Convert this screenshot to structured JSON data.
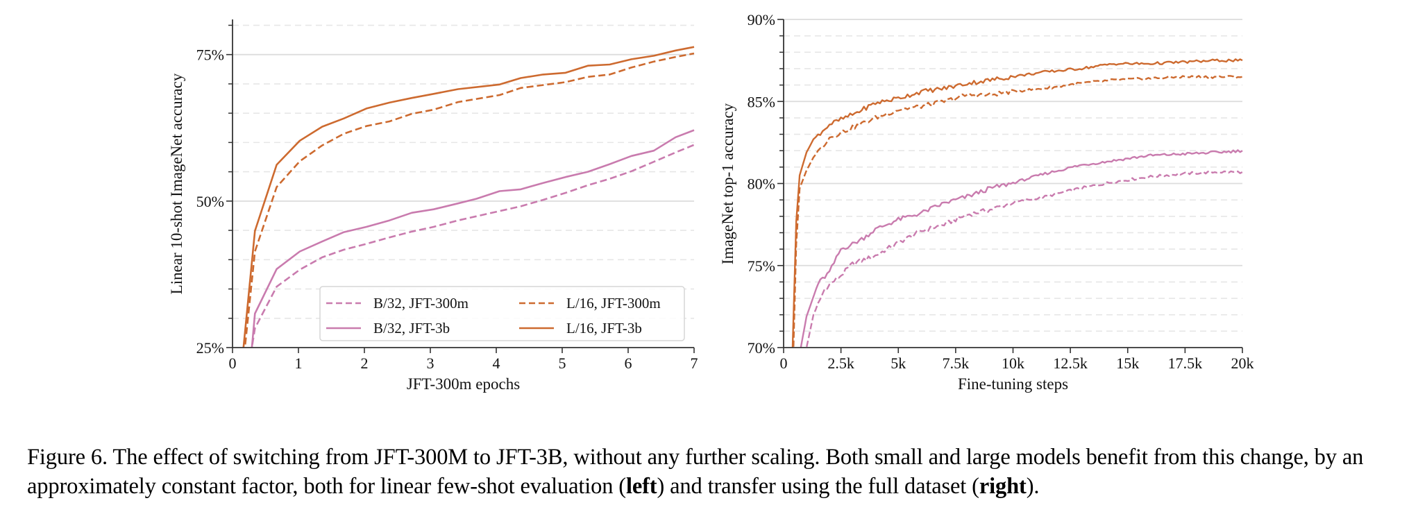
{
  "chart_data": [
    {
      "type": "line",
      "panel": "left",
      "title": "",
      "xlabel": "JFT-300m epochs",
      "ylabel": "Linear 10-shot ImageNet accuracy",
      "xlim": [
        0,
        7
      ],
      "ylim": [
        25,
        81
      ],
      "xticks": [
        0,
        1,
        2,
        3,
        4,
        5,
        6,
        7
      ],
      "xtick_labels": [
        "0",
        "1",
        "2",
        "3",
        "4",
        "5",
        "6",
        "7"
      ],
      "yticks": [
        25,
        50,
        75
      ],
      "ytick_labels": [
        "25%",
        "50%",
        "75%"
      ],
      "yminor": [
        30,
        35,
        40,
        45,
        55,
        60,
        65,
        70,
        80
      ],
      "grid": true,
      "legend": {
        "placement": "lower-right",
        "columns": 2
      },
      "series": [
        {
          "name": "B/32, JFT-300m",
          "color": "#c97bae",
          "dash": "dashed",
          "x": [
            0.25,
            0.34,
            0.67,
            1.02,
            1.36,
            1.69,
            2.03,
            2.38,
            2.72,
            3.05,
            3.42,
            4.05,
            4.37,
            4.71,
            5.05,
            5.39,
            5.72,
            6.05,
            6.39,
            6.72,
            7.0
          ],
          "y": [
            22.0,
            28.3,
            35.4,
            38.3,
            40.4,
            41.7,
            42.7,
            43.8,
            44.8,
            45.6,
            46.7,
            48.3,
            49.1,
            50.2,
            51.4,
            52.7,
            53.8,
            55.1,
            56.7,
            58.3,
            59.6
          ]
        },
        {
          "name": "B/32, JFT-3b",
          "color": "#c97bae",
          "dash": "solid",
          "x": [
            0.27,
            0.34,
            0.67,
            1.02,
            1.36,
            1.69,
            2.03,
            2.38,
            2.72,
            3.05,
            3.42,
            3.7,
            4.05,
            4.37,
            4.71,
            5.05,
            5.39,
            5.72,
            6.05,
            6.39,
            6.72,
            7.0
          ],
          "y": [
            22.0,
            30.8,
            38.4,
            41.4,
            43.1,
            44.7,
            45.6,
            46.7,
            48.0,
            48.6,
            49.6,
            50.4,
            51.7,
            52.0,
            53.1,
            54.1,
            55.0,
            56.3,
            57.7,
            58.6,
            60.9,
            62.1
          ]
        },
        {
          "name": "L/16, JFT-300m",
          "color": "#cd6a2f",
          "dash": "dashed",
          "x": [
            0.16,
            0.34,
            0.67,
            1.02,
            1.36,
            1.69,
            2.03,
            2.38,
            2.72,
            3.05,
            3.42,
            4.05,
            4.37,
            5.05,
            5.39,
            5.72,
            6.05,
            6.39,
            6.72,
            7.0
          ],
          "y": [
            22.0,
            41.4,
            52.4,
            56.8,
            59.5,
            61.5,
            62.8,
            63.6,
            64.9,
            65.6,
            66.9,
            68.1,
            69.3,
            70.3,
            71.2,
            71.6,
            72.8,
            73.8,
            74.6,
            75.2
          ]
        },
        {
          "name": "L/16, JFT-3b",
          "color": "#cd6a2f",
          "dash": "solid",
          "x": [
            0.14,
            0.34,
            0.67,
            1.02,
            1.36,
            1.69,
            2.03,
            2.38,
            2.72,
            3.05,
            3.42,
            4.05,
            4.37,
            4.71,
            5.05,
            5.39,
            5.72,
            6.05,
            6.39,
            6.72,
            7.0
          ],
          "y": [
            22.0,
            44.9,
            56.2,
            60.3,
            62.7,
            64.1,
            65.8,
            66.8,
            67.6,
            68.3,
            69.1,
            69.9,
            71.0,
            71.6,
            71.9,
            73.1,
            73.3,
            74.2,
            74.8,
            75.7,
            76.3
          ]
        }
      ]
    },
    {
      "type": "line",
      "panel": "right",
      "title": "",
      "xlabel": "Fine-tuning steps",
      "ylabel": "ImageNet top-1 accuracy",
      "xlim": [
        0,
        20000
      ],
      "ylim": [
        70,
        90
      ],
      "xticks": [
        0,
        2500,
        5000,
        7500,
        10000,
        12500,
        15000,
        17500,
        20000
      ],
      "xtick_labels": [
        "0",
        "2.5k",
        "5k",
        "7.5k",
        "10k",
        "12.5k",
        "15k",
        "17.5k",
        "20k"
      ],
      "yticks": [
        70,
        75,
        80,
        85,
        90
      ],
      "ytick_labels": [
        "70%",
        "75%",
        "80%",
        "85%",
        "90%"
      ],
      "yminor": [
        71,
        72,
        73,
        74,
        76,
        77,
        78,
        79,
        81,
        82,
        83,
        84,
        86,
        87,
        88,
        89
      ],
      "grid": true,
      "noisy": true,
      "series": [
        {
          "name": "B/32, JFT-300m",
          "color": "#c97bae",
          "dash": "dashed",
          "x": [
            950,
            1000,
            1300,
            1800,
            2500,
            3000,
            4000,
            5000,
            6000,
            7000,
            8000,
            9000,
            9900,
            11400,
            12900,
            14400,
            15900,
            17400,
            18900,
            20000
          ],
          "y": [
            69.5,
            70.0,
            72.0,
            73.6,
            74.4,
            75.1,
            75.6,
            76.4,
            77.1,
            77.5,
            78.1,
            78.4,
            78.8,
            79.2,
            79.7,
            80.1,
            80.4,
            80.6,
            80.7,
            80.7
          ]
        },
        {
          "name": "B/32, JFT-3b",
          "color": "#c97bae",
          "dash": "solid",
          "x": [
            700,
            750,
            1000,
            1250,
            1500,
            2000,
            2500,
            3000,
            3500,
            4000,
            5000,
            6000,
            7000,
            8000,
            9000,
            9900,
            11400,
            12900,
            14400,
            15900,
            17400,
            18900,
            20000
          ],
          "y": [
            69.5,
            70.0,
            71.9,
            72.9,
            73.9,
            74.6,
            76.0,
            76.3,
            76.7,
            77.2,
            77.8,
            78.2,
            78.8,
            79.2,
            79.7,
            80.0,
            80.6,
            81.1,
            81.4,
            81.7,
            81.8,
            81.9,
            82.0
          ]
        },
        {
          "name": "L/16, JFT-300m",
          "color": "#cd6a2f",
          "dash": "dashed",
          "x": [
            420,
            550,
            700,
            1000,
            1300,
            2000,
            3000,
            4000,
            5000,
            6000,
            7000,
            8000,
            9000,
            9900,
            11400,
            12900,
            14400,
            15900,
            17400,
            18900,
            20000
          ],
          "y": [
            69.5,
            76.3,
            79.7,
            80.8,
            81.6,
            82.8,
            83.4,
            84.0,
            84.5,
            84.7,
            85.0,
            85.4,
            85.4,
            85.6,
            85.8,
            86.1,
            86.3,
            86.4,
            86.5,
            86.5,
            86.5
          ]
        },
        {
          "name": "L/16, JFT-3b",
          "color": "#cd6a2f",
          "dash": "solid",
          "x": [
            380,
            550,
            700,
            1000,
            1300,
            2000,
            3000,
            4000,
            5000,
            6000,
            7000,
            8000,
            9000,
            9900,
            11400,
            12900,
            14400,
            15900,
            17400,
            18900,
            20000
          ],
          "y": [
            69.5,
            77.7,
            80.5,
            81.9,
            82.7,
            83.6,
            84.2,
            84.9,
            85.2,
            85.6,
            85.8,
            86.1,
            86.3,
            86.5,
            86.8,
            87.0,
            87.3,
            87.3,
            87.4,
            87.5,
            87.5
          ]
        }
      ]
    }
  ],
  "caption": {
    "part1": "Figure 6. The effect of switching from JFT-300M to JFT-3B, without any further scaling. Both small and large models benefit from this change, by an approximately constant factor, both for linear few-shot evaluation (",
    "bold1": "left",
    "part2": ") and transfer using the full dataset (",
    "bold2": "right",
    "part3": ")."
  }
}
